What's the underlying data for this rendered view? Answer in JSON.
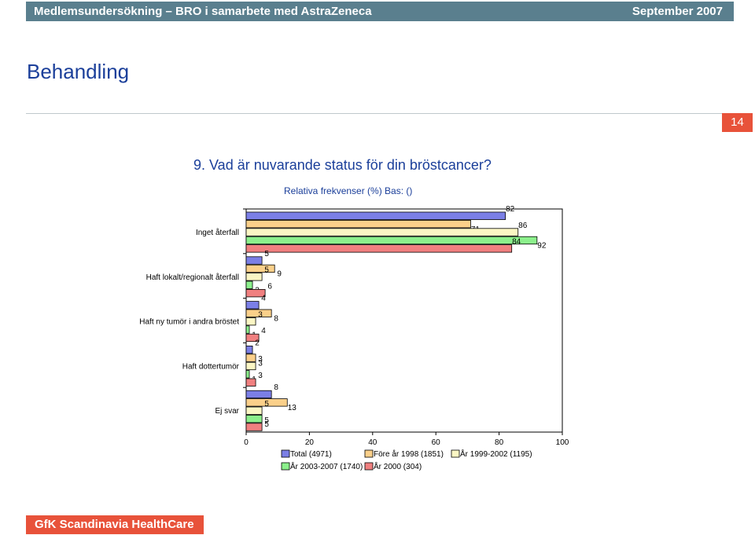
{
  "header": {
    "left": "Medlemsundersökning – BRO i samarbete med AstraZeneca",
    "right": "September 2007"
  },
  "page_heading": "Behandling",
  "page_number": "14",
  "footer": "GfK Scandinavia HealthCare",
  "chart_data": {
    "type": "bar",
    "orientation": "horizontal",
    "title": "9. Vad är nuvarande status för din bröstcancer?",
    "subtitle": "Relativa frekvenser (%) Bas: ()",
    "categories": [
      "Inget återfall",
      "Haft lokalt/regionalt återfall",
      "Haft ny tumör i andra bröstet",
      "Haft dottertumör",
      "Ej svar"
    ],
    "series": [
      {
        "name": "Total (4971)",
        "color": "#7b7fe6",
        "values": [
          82,
          5,
          4,
          2,
          8
        ]
      },
      {
        "name": "Före år 1998 (1851)",
        "color": "#fbd08a",
        "values": [
          71,
          9,
          8,
          3,
          13
        ]
      },
      {
        "name": "År 1999-2002 (1195)",
        "color": "#fbf6c4",
        "values": [
          86,
          5,
          3,
          3,
          5
        ]
      },
      {
        "name": "År 2003-2007 (1740)",
        "color": "#8cf08c",
        "values": [
          92,
          2,
          1,
          1,
          5
        ]
      },
      {
        "name": "År 2000 (304)",
        "color": "#f08080",
        "values": [
          84,
          6,
          4,
          3,
          5
        ]
      }
    ],
    "xlim": [
      0,
      100
    ],
    "xticks": [
      0,
      20,
      40,
      60,
      80,
      100
    ],
    "grid": false,
    "legend_position": "bottom"
  }
}
